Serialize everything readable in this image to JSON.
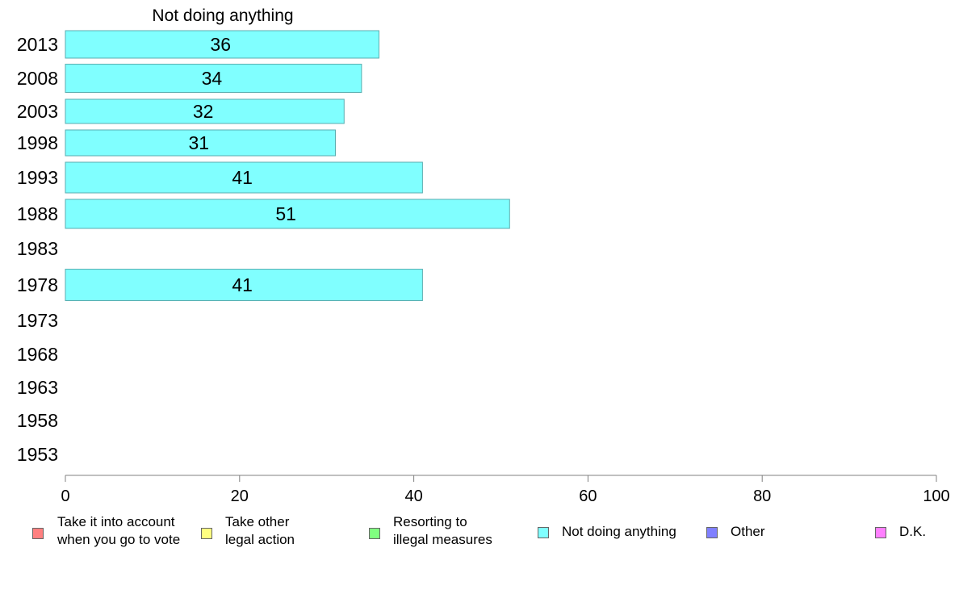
{
  "chart_data": {
    "type": "bar",
    "orientation": "horizontal",
    "title": "Not doing anything",
    "categories": [
      "2013",
      "2008",
      "2003",
      "1998",
      "1993",
      "1988",
      "1983",
      "1978",
      "1973",
      "1968",
      "1963",
      "1958",
      "1953"
    ],
    "series": [
      {
        "name": "Not doing anything",
        "color": "#80ffff",
        "values": [
          36,
          34,
          32,
          31,
          41,
          51,
          null,
          41,
          null,
          null,
          null,
          null,
          null
        ]
      }
    ],
    "data_labels": [
      "36",
      "34",
      "32",
      "31",
      "41",
      "51",
      "",
      "41",
      "",
      "",
      "",
      "",
      ""
    ],
    "xlim": [
      0,
      100
    ],
    "xticks": [
      "0",
      "20",
      "40",
      "60",
      "80",
      "100"
    ],
    "grid": false,
    "legend_position": "bottom"
  },
  "legend": [
    {
      "label": "Take it into account\nwhen you go to vote",
      "color": "#ff8080",
      "icon": "legend-swatch"
    },
    {
      "label": "Take other\nlegal action",
      "color": "#ffff80",
      "icon": "legend-swatch"
    },
    {
      "label": "Resorting to\nillegal measures",
      "color": "#80ff80",
      "icon": "legend-swatch"
    },
    {
      "label": "Not doing anything",
      "color": "#80ffff",
      "icon": "legend-swatch"
    },
    {
      "label": "Other",
      "color": "#8080ff",
      "icon": "legend-swatch"
    },
    {
      "label": "D.K.",
      "color": "#ff80ff",
      "icon": "legend-swatch"
    }
  ]
}
